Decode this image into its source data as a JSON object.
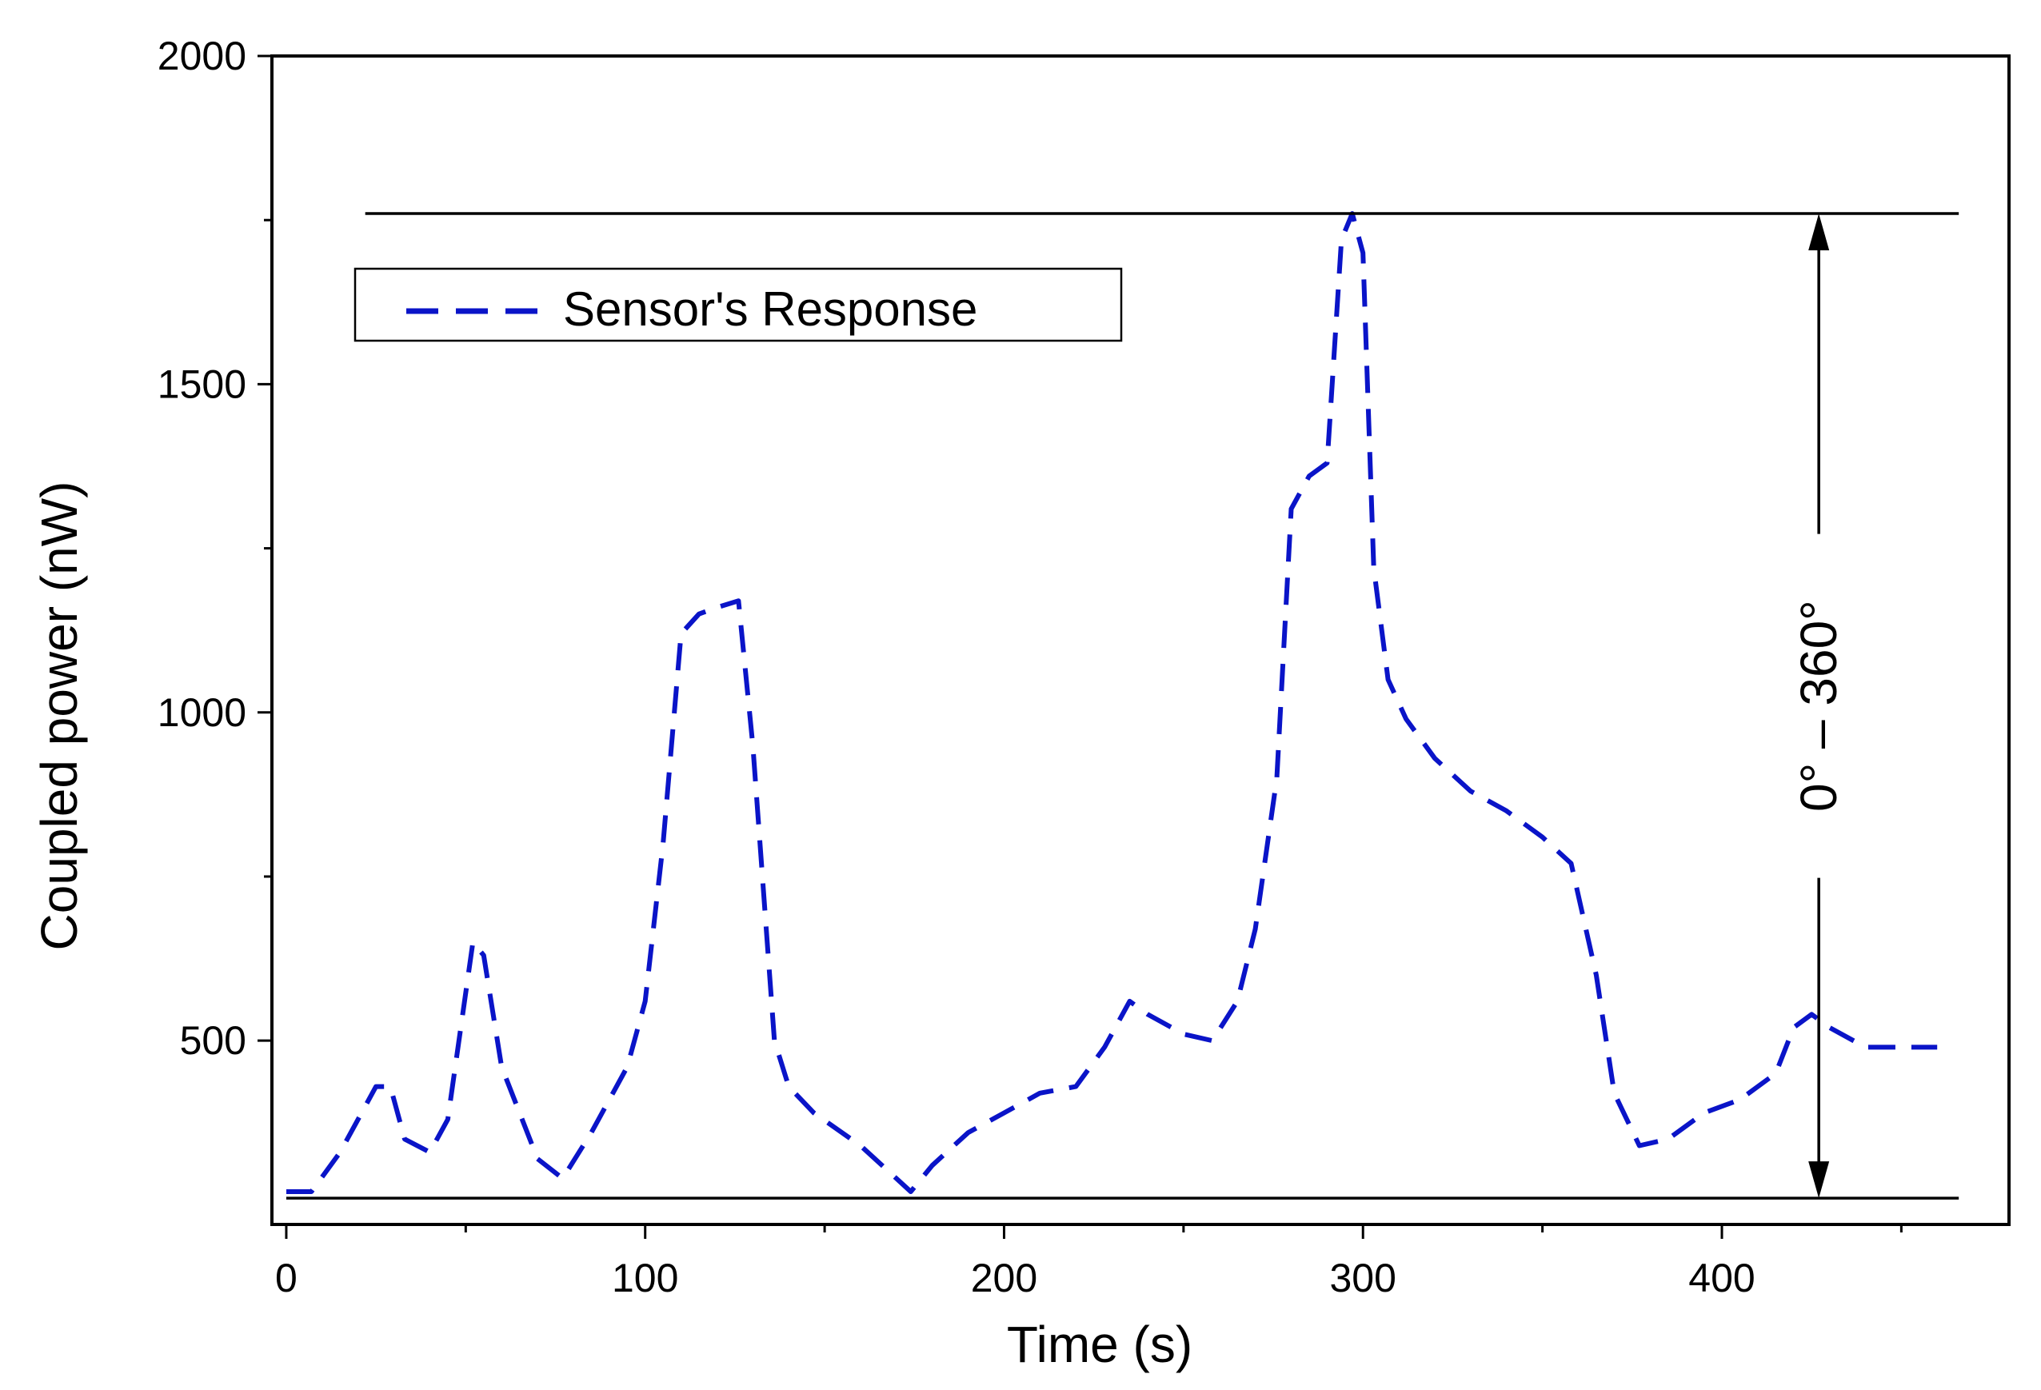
{
  "chart_data": {
    "type": "line",
    "title": "",
    "xlabel": "Time (s)",
    "ylabel": "Coupled power (nW)",
    "xlim": [
      -4,
      480
    ],
    "ylim": [
      220,
      2000
    ],
    "x_ticks": [
      0,
      100,
      200,
      300,
      400
    ],
    "x_minor_ticks": [
      50,
      150,
      250,
      350,
      450
    ],
    "y_ticks": [
      500,
      1000,
      1500,
      2000
    ],
    "y_minor_ticks": [
      750,
      1250,
      1750
    ],
    "grid": false,
    "legend": {
      "position": "top-left",
      "entries": [
        "Sensor's Response"
      ]
    },
    "series": [
      {
        "name": "Sensor's Response",
        "color": "#0a14c8",
        "style": "dashed",
        "x": [
          0,
          7,
          15,
          25,
          29,
          33,
          40,
          45,
          52,
          55,
          60,
          70,
          77,
          85,
          95,
          100,
          105,
          110,
          115,
          120,
          126,
          130,
          136,
          140,
          147,
          160,
          174,
          180,
          190,
          200,
          210,
          220,
          228,
          235,
          240,
          250,
          258,
          265,
          270,
          276,
          280,
          285,
          290,
          294,
          297,
          300,
          303,
          307,
          312,
          320,
          330,
          340,
          350,
          358,
          365,
          370,
          377,
          385,
          395,
          405,
          415,
          420,
          425,
          430,
          440,
          450,
          460
        ],
        "y": [
          270,
          270,
          330,
          430,
          430,
          350,
          330,
          380,
          650,
          630,
          460,
          320,
          290,
          360,
          460,
          560,
          800,
          1120,
          1150,
          1160,
          1170,
          950,
          500,
          430,
          390,
          340,
          270,
          310,
          360,
          390,
          420,
          430,
          490,
          560,
          540,
          510,
          500,
          560,
          670,
          900,
          1310,
          1360,
          1380,
          1720,
          1760,
          1700,
          1220,
          1050,
          990,
          930,
          880,
          850,
          810,
          770,
          600,
          420,
          340,
          350,
          390,
          410,
          450,
          520,
          540,
          520,
          490,
          490,
          490
        ]
      }
    ],
    "annotations": [
      {
        "type": "reference-line",
        "value": 1760,
        "x_range": [
          22,
          466
        ]
      },
      {
        "type": "reference-line",
        "value": 260,
        "x_range": [
          0,
          466
        ]
      },
      {
        "type": "double-arrow",
        "x": 427,
        "from": 260,
        "to": 1760,
        "label": "0° – 360°"
      }
    ]
  }
}
